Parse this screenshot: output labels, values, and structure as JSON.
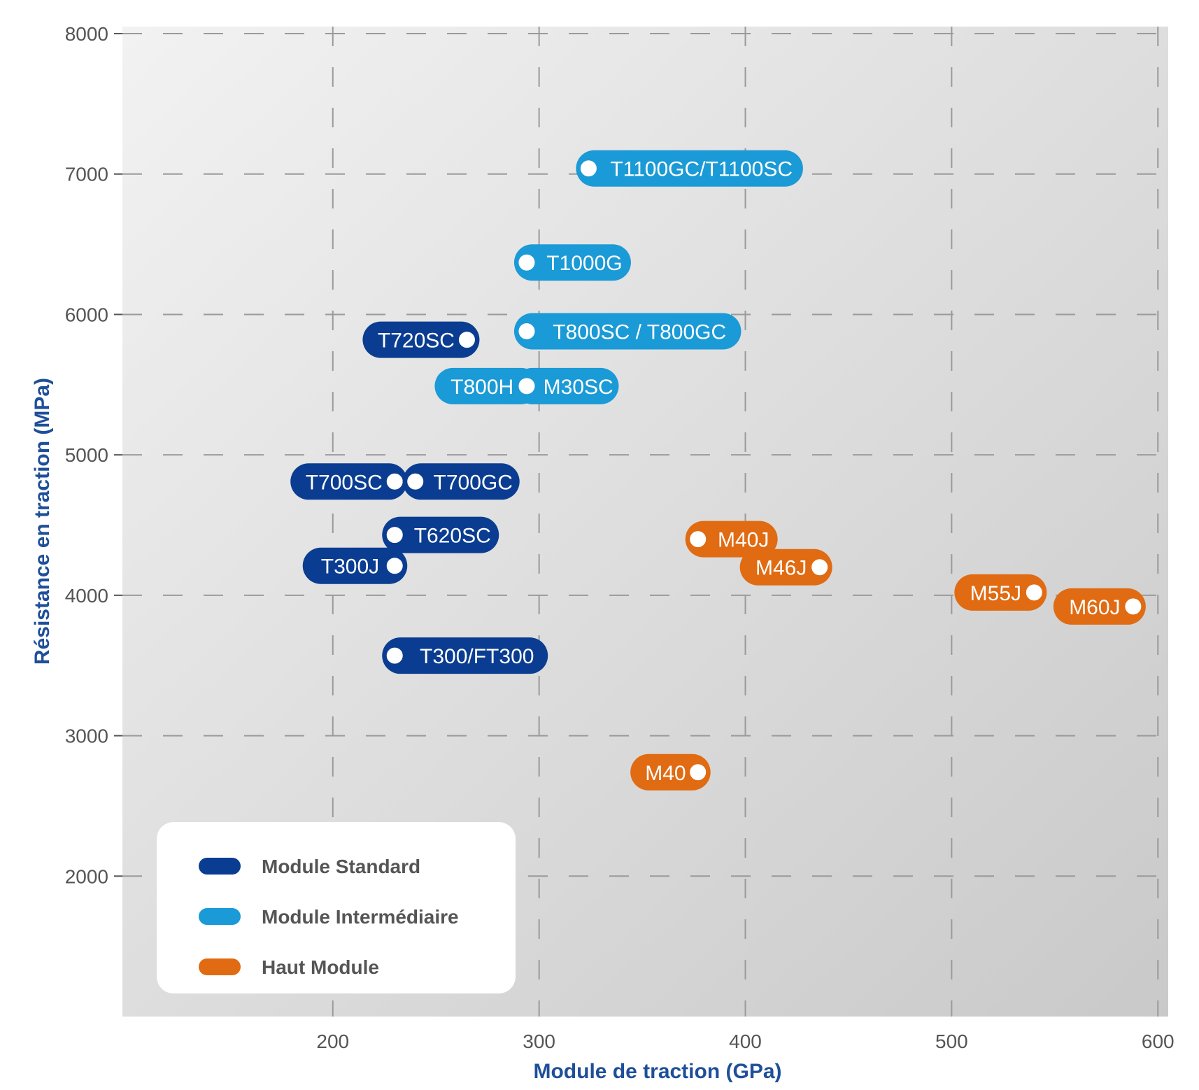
{
  "chart_data": {
    "type": "scatter",
    "xlabel": "Module de traction (GPa)",
    "ylabel": "Résistance en traction (MPa)",
    "xlim": [
      98,
      605
    ],
    "ylim": [
      1000,
      8050
    ],
    "xticks": [
      200,
      300,
      400,
      500,
      600
    ],
    "yticks": [
      2000,
      3000,
      4000,
      5000,
      6000,
      7000,
      8000
    ],
    "grid": true,
    "legend_position": "bottom-left",
    "colors": {
      "Module Standard": "#0a3d91",
      "Module Intermédiaire": "#1a9ad6",
      "Haut Module": "#e06b12"
    },
    "series": [
      {
        "name": "Module Standard",
        "points": [
          {
            "label": "T720SC",
            "x": 265,
            "y": 5820,
            "label_side": "left"
          },
          {
            "label": "T700SC",
            "x": 230,
            "y": 4810,
            "label_side": "left"
          },
          {
            "label": "T700GC",
            "x": 240,
            "y": 4810,
            "label_side": "right"
          },
          {
            "label": "T620SC",
            "x": 230,
            "y": 4430,
            "label_side": "right"
          },
          {
            "label": "T300J",
            "x": 230,
            "y": 4210,
            "label_side": "left"
          },
          {
            "label": "T300/FT300",
            "x": 230,
            "y": 3570,
            "label_side": "right"
          }
        ]
      },
      {
        "name": "Module Intermédiaire",
        "points": [
          {
            "label": "T1100GC/T1100SC",
            "x": 324,
            "y": 7040,
            "label_side": "right"
          },
          {
            "label": "T1000G",
            "x": 294,
            "y": 6370,
            "label_side": "right"
          },
          {
            "label": "T800SC / T800GC",
            "x": 294,
            "y": 5880,
            "label_side": "right"
          },
          {
            "label": "T800H",
            "x": 294,
            "y": 5490,
            "label_side": "left"
          },
          {
            "label": "M30SC",
            "x": 294,
            "y": 5490,
            "label_side": "right"
          }
        ]
      },
      {
        "name": "Haut Module",
        "points": [
          {
            "label": "M40J",
            "x": 377,
            "y": 4400,
            "label_side": "right"
          },
          {
            "label": "M46J",
            "x": 436,
            "y": 4200,
            "label_side": "left"
          },
          {
            "label": "M55J",
            "x": 540,
            "y": 4020,
            "label_side": "left"
          },
          {
            "label": "M60J",
            "x": 588,
            "y": 3920,
            "label_side": "left"
          },
          {
            "label": "M40",
            "x": 377,
            "y": 2740,
            "label_side": "left"
          }
        ]
      }
    ]
  }
}
